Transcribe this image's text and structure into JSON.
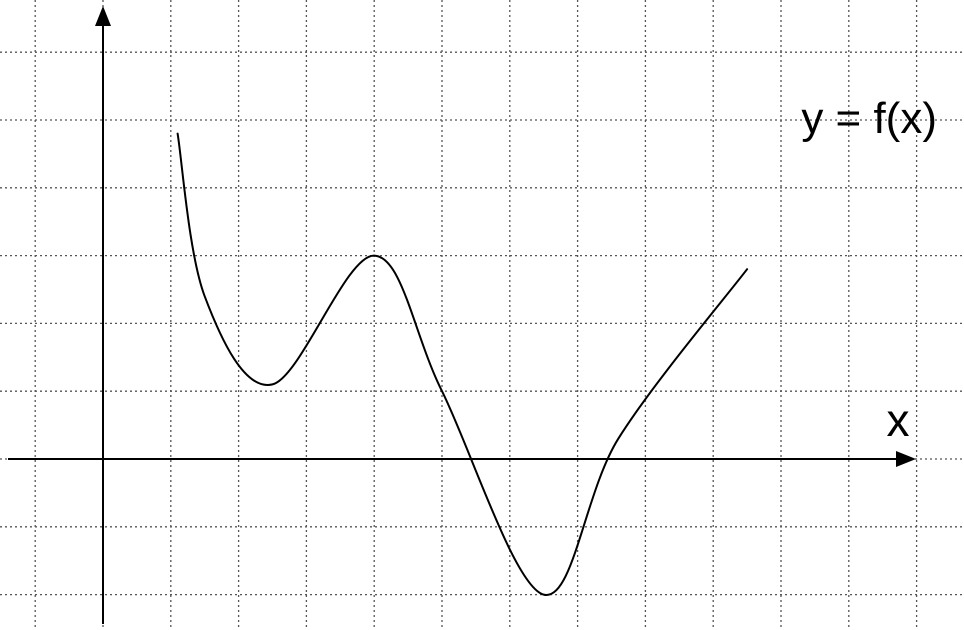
{
  "diagram": {
    "function_label": "y = f(x)",
    "x_axis_label": "x",
    "grid": true,
    "colors": {
      "curve": "#000000",
      "axes": "#000000",
      "grid": "#555555",
      "background": "#ffffff"
    }
  },
  "curve_points": [
    [
      1.1,
      4.8
    ],
    [
      1.5,
      2.4
    ],
    [
      2.5,
      1.1
    ],
    [
      4.0,
      3.0
    ],
    [
      5.0,
      1.0
    ],
    [
      6.5,
      -2.0
    ],
    [
      7.6,
      0.3
    ],
    [
      9.5,
      2.8
    ]
  ]
}
